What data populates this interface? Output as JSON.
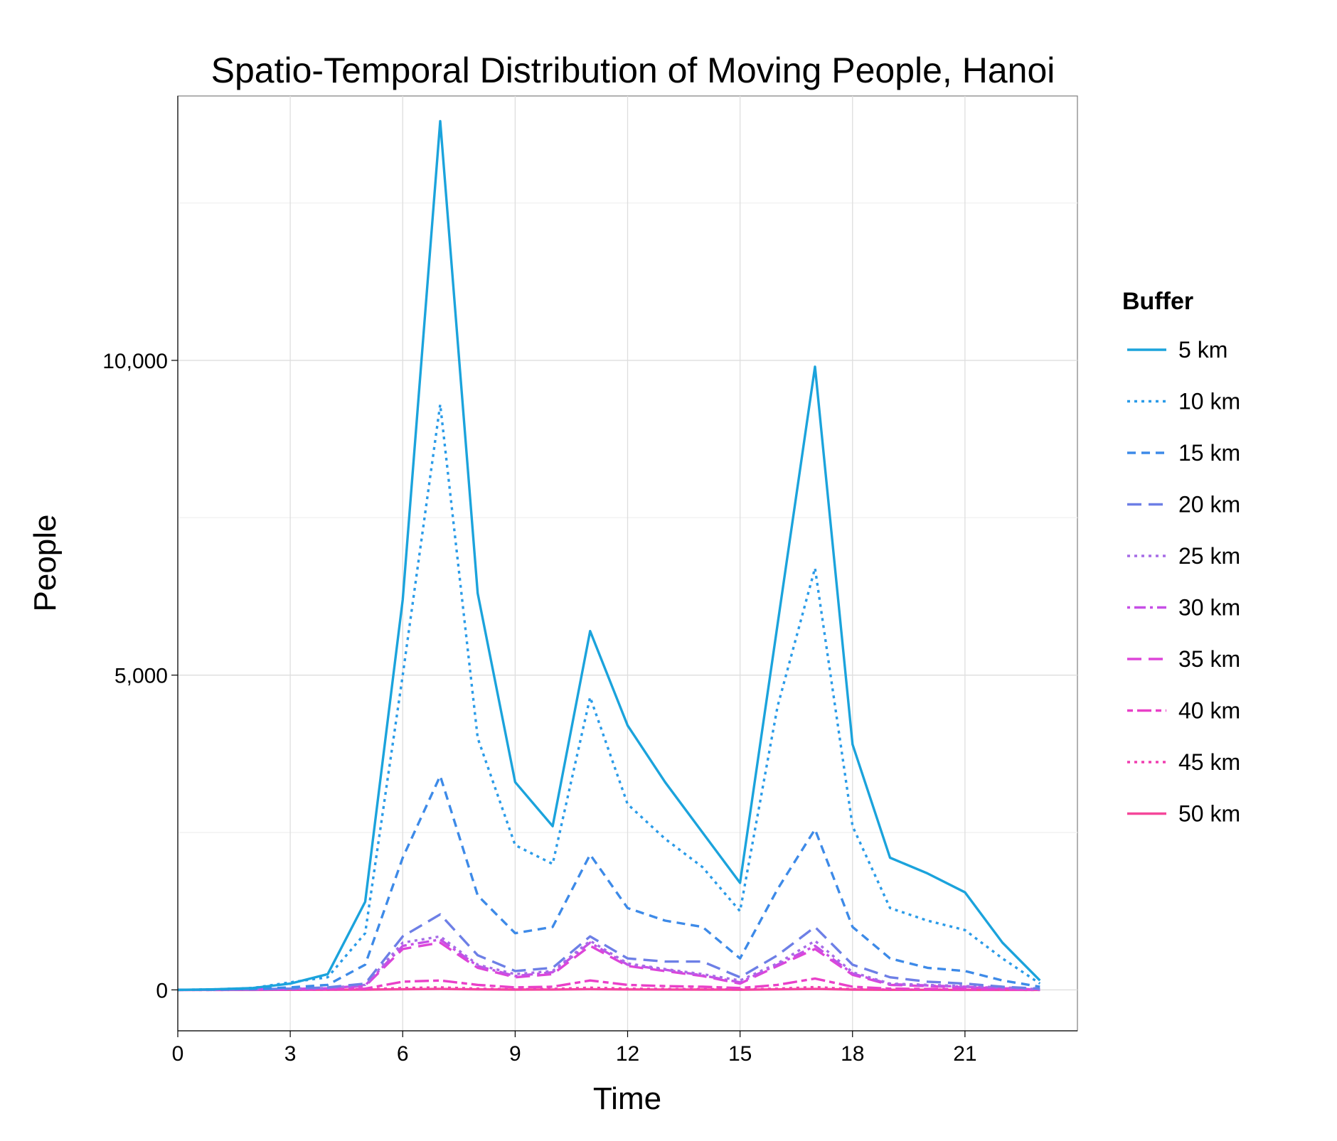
{
  "chart_data": {
    "type": "line",
    "title": "Spatio-Temporal Distribution of Moving People, Hanoi",
    "xlabel": "Time",
    "ylabel": "People",
    "xlim": [
      0,
      24
    ],
    "ylim": [
      -650,
      14200
    ],
    "x_ticks": [
      0,
      3,
      6,
      9,
      12,
      15,
      18,
      21
    ],
    "x_tick_labels": [
      "0",
      "3",
      "6",
      "9",
      "12",
      "15",
      "18",
      "21"
    ],
    "y_ticks": [
      0,
      5000,
      10000
    ],
    "y_tick_labels": [
      "0",
      "5,000",
      "10,000"
    ],
    "y_minor_ticks": [
      2500,
      7500,
      12500
    ],
    "grid": true,
    "legend": {
      "title": "Buffer",
      "position": "right"
    },
    "x": [
      0,
      1,
      2,
      3,
      4,
      5,
      6,
      7,
      8,
      9,
      10,
      11,
      12,
      13,
      14,
      15,
      16,
      17,
      18,
      19,
      20,
      21,
      22,
      23
    ],
    "series": [
      {
        "name": "5 km",
        "color": "#1ba3dc",
        "dash": "solid",
        "values": [
          0,
          10,
          30,
          100,
          250,
          1400,
          6200,
          13800,
          6300,
          3300,
          2600,
          5700,
          4200,
          3300,
          2500,
          1700,
          5800,
          9900,
          3900,
          2100,
          1850,
          1550,
          750,
          150
        ]
      },
      {
        "name": "10 km",
        "color": "#2a9be8",
        "dash": "dotted",
        "values": [
          0,
          10,
          30,
          120,
          200,
          900,
          5000,
          9300,
          4000,
          2300,
          2000,
          4650,
          2950,
          2400,
          1950,
          1250,
          4500,
          6700,
          2600,
          1300,
          1100,
          950,
          500,
          100
        ]
      },
      {
        "name": "15 km",
        "color": "#3d8ae8",
        "dash": "dashed",
        "values": [
          0,
          5,
          15,
          40,
          80,
          400,
          2100,
          3400,
          1500,
          900,
          1000,
          2150,
          1300,
          1100,
          1000,
          500,
          1600,
          2550,
          1000,
          500,
          350,
          300,
          150,
          50
        ]
      },
      {
        "name": "20 km",
        "color": "#6d7fe6",
        "dash": "longdash",
        "values": [
          0,
          5,
          10,
          20,
          40,
          100,
          850,
          1200,
          550,
          300,
          350,
          850,
          500,
          450,
          450,
          200,
          550,
          1000,
          400,
          200,
          130,
          100,
          50,
          20
        ]
      },
      {
        "name": "25 km",
        "color": "#a66ce6",
        "dash": "dotted",
        "values": [
          0,
          5,
          10,
          20,
          30,
          80,
          750,
          850,
          400,
          250,
          300,
          780,
          420,
          330,
          250,
          150,
          420,
          780,
          280,
          100,
          80,
          60,
          40,
          10
        ]
      },
      {
        "name": "30 km",
        "color": "#c64fe6",
        "dash": "dotdash",
        "values": [
          0,
          3,
          8,
          15,
          25,
          70,
          700,
          800,
          380,
          220,
          280,
          750,
          400,
          320,
          230,
          120,
          400,
          700,
          260,
          90,
          70,
          50,
          30,
          10
        ]
      },
      {
        "name": "35 km",
        "color": "#dd45d8",
        "dash": "longdash",
        "values": [
          0,
          3,
          8,
          15,
          25,
          60,
          650,
          750,
          350,
          200,
          250,
          700,
          380,
          300,
          220,
          100,
          380,
          650,
          240,
          80,
          60,
          40,
          25,
          5
        ]
      },
      {
        "name": "40 km",
        "color": "#e940c8",
        "dash": "twodash",
        "values": [
          0,
          1,
          3,
          5,
          10,
          20,
          130,
          150,
          80,
          40,
          50,
          150,
          80,
          60,
          50,
          30,
          80,
          180,
          50,
          20,
          15,
          10,
          5,
          2
        ]
      },
      {
        "name": "45 km",
        "color": "#f03fb0",
        "dash": "dotted",
        "values": [
          0,
          1,
          2,
          3,
          5,
          10,
          30,
          40,
          20,
          10,
          15,
          35,
          20,
          15,
          12,
          8,
          20,
          45,
          12,
          5,
          4,
          3,
          2,
          1
        ]
      },
      {
        "name": "50 km",
        "color": "#f5479a",
        "dash": "solid",
        "values": [
          0,
          1,
          1,
          2,
          3,
          5,
          10,
          15,
          8,
          5,
          6,
          12,
          7,
          6,
          5,
          3,
          8,
          15,
          5,
          2,
          2,
          1,
          1,
          0
        ]
      }
    ]
  }
}
